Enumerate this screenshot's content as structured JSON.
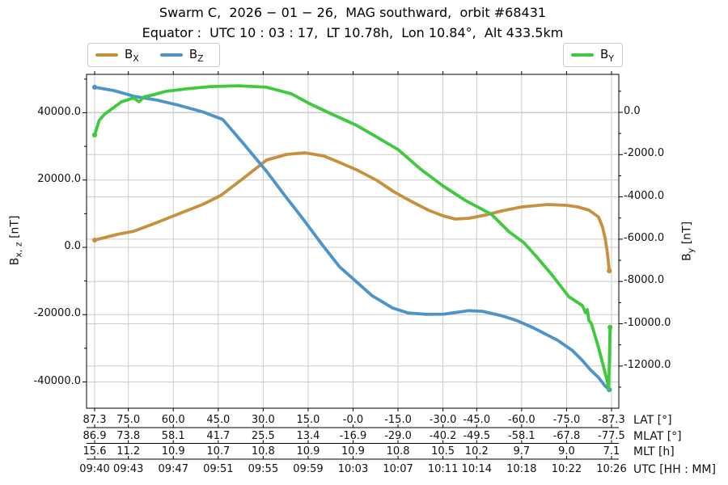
{
  "title": {
    "line1": "Swarm C,  2026 − 01 − 26,  MAG southward,  orbit #68431",
    "line2": "Equator :  UTC 10 : 03 : 17,  LT 10.78h,  Lon 10.84°,  Alt 433.5km"
  },
  "legend": {
    "left": [
      {
        "base": "B",
        "sub": "X"
      },
      {
        "base": "B",
        "sub": "Z"
      }
    ],
    "right": [
      {
        "base": "B",
        "sub": "Y"
      }
    ]
  },
  "left_axis": {
    "label_base": "B",
    "label_sub": "x, z",
    "label_unit": " [nT]",
    "tick_labels": [
      "40000.0",
      "20000.0",
      "0.0",
      "-20000.0",
      "-40000.0"
    ]
  },
  "right_axis": {
    "label_base": "B",
    "label_sub": "y",
    "label_unit": " [nT]",
    "tick_labels": [
      "0.0",
      "-2000.0",
      "-4000.0",
      "-6000.0",
      "-8000.0",
      "-10000.0",
      "-12000.0"
    ]
  },
  "bottom": {
    "tick_minutes": [
      0,
      3,
      7,
      11,
      15,
      19,
      23,
      27,
      31,
      34,
      38,
      42,
      46
    ],
    "rows": [
      {
        "label": "LAT [°]",
        "values": [
          "87.3",
          "75.0",
          "60.0",
          "45.0",
          "30.0",
          "15.0",
          "-0.0",
          "-15.0",
          "-30.0",
          "-45.0",
          "-60.0",
          "-75.0",
          "-87.3"
        ]
      },
      {
        "label": "MLAT [°]",
        "values": [
          "86.9",
          "73.8",
          "58.1",
          "41.7",
          "25.5",
          "13.4",
          "-16.9",
          "-29.0",
          "-40.2",
          "-49.5",
          "-58.1",
          "-67.8",
          "-77.5"
        ]
      },
      {
        "label": "MLT [h]",
        "values": [
          "15.6",
          "11.2",
          "10.9",
          "10.7",
          "10.8",
          "10.9",
          "10.9",
          "10.8",
          "10.5",
          "10.2",
          "9.7",
          "9.0",
          "7.1"
        ]
      },
      {
        "label": "UTC [HH : MM]",
        "values": [
          "09:40",
          "09:43",
          "09:47",
          "09:51",
          "09:55",
          "09:59",
          "10:03",
          "10:07",
          "10:11",
          "10:14",
          "10:18",
          "10:22",
          "10:26"
        ]
      }
    ]
  },
  "chart_data": {
    "type": "line",
    "title": "Swarm C, 2026-01-26, MAG southward, orbit #68431",
    "subtitle": "Equator: UTC 10:03:17, LT 10.78h, Lon 10.84°, Alt 433.5km",
    "x_axis": {
      "unit": "minutes after 09:40 UTC",
      "start_label": "09:40",
      "end_label": "10:26",
      "range": [
        -0.7,
        46.6
      ]
    },
    "y_left": {
      "label": "Bx,z [nT]",
      "range": [
        -47800,
        51400
      ],
      "ticks": [
        40000,
        20000,
        0,
        -20000,
        -40000
      ],
      "minor_ticks": [
        50000,
        30000,
        10000,
        -10000,
        -30000
      ]
    },
    "y_right": {
      "label": "By [nT]",
      "range": [
        -14000,
        1800
      ],
      "ticks": [
        0,
        -2000,
        -4000,
        -6000,
        -8000,
        -10000,
        -12000
      ],
      "minor_ticks": [
        1000,
        -1000,
        -3000,
        -5000,
        -7000,
        -9000,
        -11000,
        -13000
      ]
    },
    "grid": true,
    "legend_position": "top",
    "series": [
      {
        "name": "BX",
        "axis": "left",
        "color": "#c6913f",
        "points": [
          [
            0,
            2160
          ],
          [
            2,
            3840
          ],
          [
            3.5,
            4800
          ],
          [
            5.6,
            7450
          ],
          [
            7.4,
            9850
          ],
          [
            9.6,
            12730
          ],
          [
            11.2,
            15370
          ],
          [
            13.2,
            20420
          ],
          [
            15.3,
            25950
          ],
          [
            17.1,
            27630
          ],
          [
            18.7,
            28100
          ],
          [
            20.4,
            27150
          ],
          [
            21.8,
            25230
          ],
          [
            23.3,
            23060
          ],
          [
            25.1,
            19940
          ],
          [
            26.6,
            16580
          ],
          [
            28.3,
            13450
          ],
          [
            29.7,
            11050
          ],
          [
            31.0,
            9370
          ],
          [
            32.1,
            8410
          ],
          [
            33.3,
            8650
          ],
          [
            34.8,
            9610
          ],
          [
            36.2,
            10810
          ],
          [
            38.0,
            12010
          ],
          [
            40.3,
            12730
          ],
          [
            42.0,
            12490
          ],
          [
            43.0,
            12010
          ],
          [
            44.0,
            11050
          ],
          [
            44.85,
            9000
          ],
          [
            45.2,
            6000
          ],
          [
            45.45,
            2500
          ],
          [
            45.65,
            -2000
          ],
          [
            45.8,
            -6970
          ]
        ]
      },
      {
        "name": "BZ",
        "axis": "left",
        "color": "#4c94ca",
        "points": [
          [
            0,
            47600
          ],
          [
            1.7,
            46600
          ],
          [
            3.5,
            44900
          ],
          [
            5.5,
            43800
          ],
          [
            7.4,
            42300
          ],
          [
            9.6,
            40300
          ],
          [
            11.4,
            38000
          ],
          [
            13.2,
            31000
          ],
          [
            15.3,
            22600
          ],
          [
            16.9,
            15500
          ],
          [
            18.6,
            8200
          ],
          [
            20.2,
            1000
          ],
          [
            21.8,
            -5800
          ],
          [
            24.7,
            -14400
          ],
          [
            26.5,
            -18000
          ],
          [
            27.9,
            -19500
          ],
          [
            29.5,
            -19900
          ],
          [
            31.1,
            -19850
          ],
          [
            33.3,
            -18800
          ],
          [
            34.5,
            -19000
          ],
          [
            36.2,
            -20300
          ],
          [
            37.6,
            -21800
          ],
          [
            39.1,
            -24000
          ],
          [
            40.2,
            -25900
          ],
          [
            41.2,
            -27600
          ],
          [
            42.5,
            -30600
          ],
          [
            43.4,
            -33600
          ],
          [
            44.1,
            -36300
          ],
          [
            44.85,
            -38700
          ],
          [
            45.4,
            -41100
          ],
          [
            45.8,
            -42300
          ]
        ]
      },
      {
        "name": "BY",
        "axis": "right",
        "color": "#3fc93f",
        "points": [
          [
            0,
            -1070
          ],
          [
            0.4,
            -380
          ],
          [
            0.9,
            -80
          ],
          [
            1.7,
            230
          ],
          [
            2.4,
            500
          ],
          [
            3.1,
            620
          ],
          [
            3.45,
            690
          ],
          [
            3.95,
            500
          ],
          [
            4.4,
            730
          ],
          [
            5.3,
            840
          ],
          [
            6.3,
            990
          ],
          [
            8.1,
            1110
          ],
          [
            10.3,
            1220
          ],
          [
            12.8,
            1260
          ],
          [
            15.3,
            1190
          ],
          [
            17.5,
            880
          ],
          [
            19.1,
            420
          ],
          [
            21.1,
            -80
          ],
          [
            23.3,
            -610
          ],
          [
            25.4,
            -1260
          ],
          [
            27.0,
            -1760
          ],
          [
            29.0,
            -2680
          ],
          [
            31.0,
            -3480
          ],
          [
            33.0,
            -4170
          ],
          [
            35.3,
            -4820
          ],
          [
            36.9,
            -5660
          ],
          [
            38.2,
            -6160
          ],
          [
            39.3,
            -6810
          ],
          [
            40.7,
            -7690
          ],
          [
            42.2,
            -8720
          ],
          [
            43.4,
            -9140
          ],
          [
            43.7,
            -9480
          ],
          [
            43.85,
            -9330
          ],
          [
            44.0,
            -9860
          ],
          [
            44.2,
            -9980
          ],
          [
            44.85,
            -11130
          ],
          [
            45.4,
            -12270
          ],
          [
            45.6,
            -12660
          ],
          [
            45.75,
            -13120
          ],
          [
            45.82,
            -11510
          ],
          [
            45.87,
            -10170
          ]
        ]
      }
    ]
  }
}
